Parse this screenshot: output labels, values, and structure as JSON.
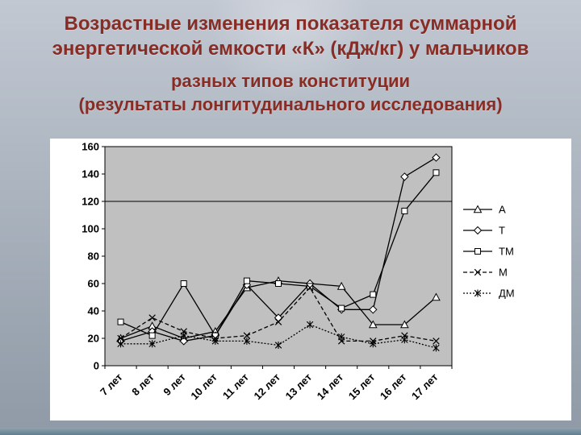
{
  "slide": {
    "title_lines": [
      "Возрастные изменения показателя суммарной",
      "энергетической емкости «К» (кДж/кг) у мальчиков",
      "разных типов конституции",
      "(результаты лонгитудинального исследования)"
    ],
    "title_color": "#872d25"
  },
  "colors": {
    "slide_bg_top": "#c2c8d2",
    "slide_bg_bottom": "#8f9aa6",
    "chart_bg": "#ffffff",
    "plot_bg": "#c0c0c0",
    "series_color": "#000000",
    "axis_color": "#000000",
    "marker_fill": "#ffffff"
  },
  "chart_data": {
    "type": "line",
    "title": "",
    "xlabel": "",
    "ylabel": "",
    "categories": [
      "7 лет",
      "8 лет",
      "9 лет",
      "10 лет",
      "11 лет",
      "12 лет",
      "13 лет",
      "14 лет",
      "15 лет",
      "16 лет",
      "17 лет"
    ],
    "series": [
      {
        "name": "А",
        "marker": "triangle",
        "dash": "solid",
        "values": [
          20,
          29,
          20,
          25,
          57,
          62,
          60,
          58,
          30,
          30,
          50
        ]
      },
      {
        "name": "Т",
        "marker": "diamond",
        "dash": "solid",
        "values": [
          18,
          25,
          18,
          22,
          59,
          35,
          60,
          41,
          41,
          138,
          152
        ]
      },
      {
        "name": "ТМ",
        "marker": "square",
        "dash": "solid",
        "values": [
          32,
          22,
          60,
          22,
          62,
          60,
          58,
          42,
          52,
          113,
          141
        ]
      },
      {
        "name": "М",
        "marker": "x",
        "dash": "dashed",
        "values": [
          20,
          35,
          25,
          20,
          22,
          32,
          57,
          18,
          18,
          22,
          18
        ]
      },
      {
        "name": "ДМ",
        "marker": "asterisk",
        "dash": "dotted",
        "values": [
          16,
          16,
          22,
          18,
          18,
          15,
          30,
          21,
          16,
          19,
          13
        ]
      }
    ],
    "ylim": [
      0,
      160
    ],
    "ytick_step": 20,
    "gridline_at": 120,
    "grid": "single-line-at-120",
    "legend_position": "right",
    "x_label_rotation_deg": -45
  }
}
